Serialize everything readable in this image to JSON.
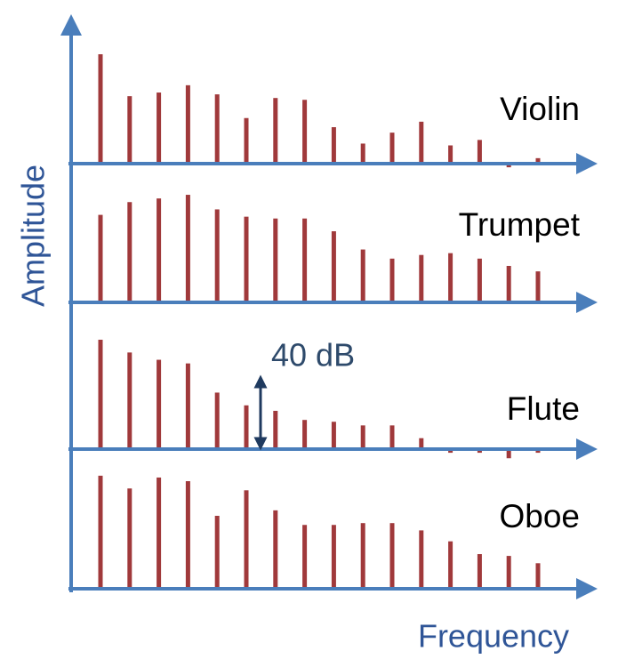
{
  "chart_data": {
    "type": "bar",
    "x_label": "Frequency",
    "y_label": "Amplitude",
    "axis_color": "#4a7ebb",
    "scale_bar": {
      "value": 40,
      "label": "40 dB"
    },
    "series": [
      {
        "name": "Violin",
        "color": "#a0393b",
        "values": [
          60,
          37,
          39,
          43,
          38,
          25,
          36,
          35,
          20,
          11,
          17,
          23,
          10,
          13,
          -2,
          3
        ]
      },
      {
        "name": "Trumpet",
        "color": "#a0393b",
        "values": [
          48,
          55,
          57,
          59,
          51,
          47,
          46,
          46,
          39,
          29,
          24,
          26,
          27,
          24,
          20,
          17
        ]
      },
      {
        "name": "Flute",
        "color": "#a0393b",
        "values": [
          60,
          53,
          49,
          47,
          31,
          24,
          21,
          16,
          15,
          13,
          13,
          6,
          -2,
          -2,
          -5,
          -2
        ]
      },
      {
        "name": "Oboe",
        "color": "#a0393b",
        "values": [
          62,
          55,
          61,
          59,
          40,
          54,
          43,
          35,
          35,
          36,
          36,
          32,
          26,
          19,
          18,
          14
        ]
      }
    ]
  }
}
